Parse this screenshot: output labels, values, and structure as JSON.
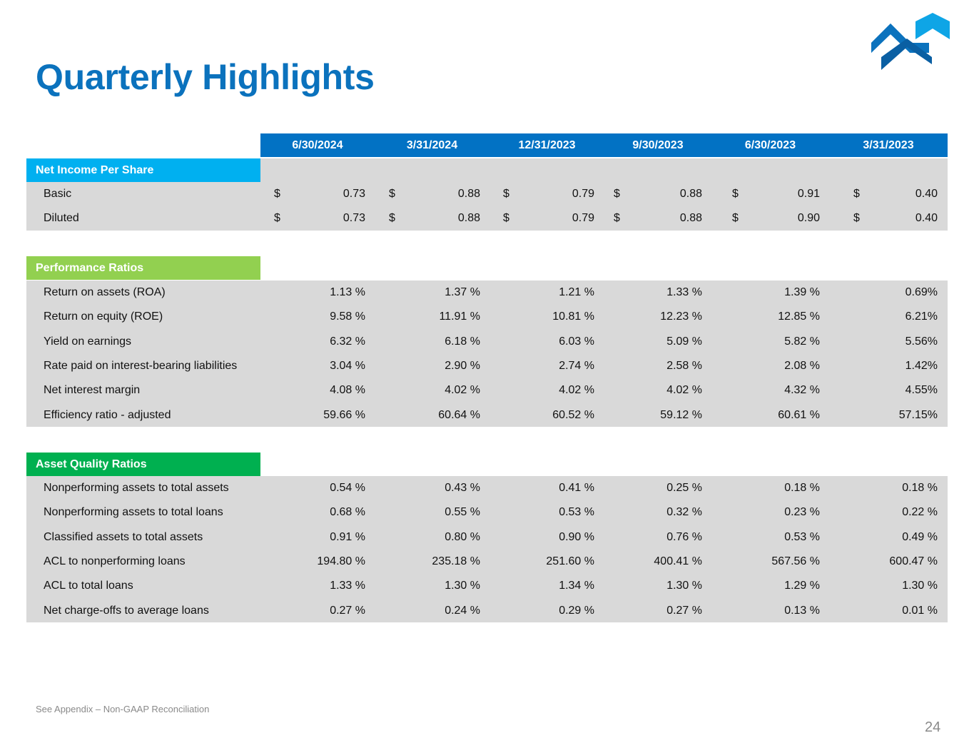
{
  "title": "Quarterly Highlights",
  "colors": {
    "title": "#0b72bd",
    "header": "#0272c4",
    "net_income_header": "#00b0f0",
    "performance_header": "#92d050",
    "asset_quality_header": "#00b050",
    "row_band": "#d9d9d9"
  },
  "periods": [
    "6/30/2024",
    "3/31/2024",
    "12/31/2023",
    "9/30/2023",
    "6/30/2023",
    "3/31/2023"
  ],
  "net_income": {
    "header": "Net Income Per Share",
    "currency": "$",
    "rows": [
      {
        "label": "Basic",
        "values": [
          "0.73",
          "0.88",
          "0.79",
          "0.88",
          "0.91",
          "0.40"
        ]
      },
      {
        "label": "Diluted",
        "values": [
          "0.73",
          "0.88",
          "0.79",
          "0.88",
          "0.90",
          "0.40"
        ]
      }
    ]
  },
  "performance": {
    "header": "Performance Ratios",
    "rows": [
      {
        "label": "Return on assets (ROA)",
        "values": [
          "1.13 %",
          "1.37 %",
          "1.21 %",
          "1.33 %",
          "1.39 %",
          "0.69%"
        ]
      },
      {
        "label": "Return on equity (ROE)",
        "values": [
          "9.58 %",
          "11.91 %",
          "10.81 %",
          "12.23 %",
          "12.85 %",
          "6.21%"
        ]
      },
      {
        "label": "Yield on earnings",
        "values": [
          "6.32 %",
          "6.18 %",
          "6.03 %",
          "5.09 %",
          "5.82 %",
          "5.56%"
        ]
      },
      {
        "label": "Rate paid on interest-bearing liabilities",
        "values": [
          "3.04 %",
          "2.90 %",
          "2.74 %",
          "2.58 %",
          "2.08 %",
          "1.42%"
        ]
      },
      {
        "label": "Net interest margin",
        "values": [
          "4.08 %",
          "4.02 %",
          "4.02 %",
          "4.02 %",
          "4.32 %",
          "4.55%"
        ]
      },
      {
        "label": "Efficiency ratio - adjusted",
        "values": [
          "59.66 %",
          "60.64 %",
          "60.52 %",
          "59.12 %",
          "60.61 %",
          "57.15%"
        ]
      }
    ]
  },
  "asset_quality": {
    "header": "Asset Quality Ratios",
    "rows": [
      {
        "label": "Nonperforming assets to total assets",
        "values": [
          "0.54 %",
          "0.43 %",
          "0.41 %",
          "0.25 %",
          "0.18 %",
          "0.18 %"
        ]
      },
      {
        "label": "Nonperforming assets to total loans",
        "values": [
          "0.68 %",
          "0.55 %",
          "0.53 %",
          "0.32 %",
          "0.23 %",
          "0.22 %"
        ]
      },
      {
        "label": "Classified assets to total assets",
        "values": [
          "0.91 %",
          "0.80 %",
          "0.90 %",
          "0.76 %",
          "0.53 %",
          "0.49 %"
        ]
      },
      {
        "label": "ACL to nonperforming loans",
        "values": [
          "194.80 %",
          "235.18 %",
          "251.60 %",
          "400.41 %",
          "567.56 %",
          "600.47 %"
        ]
      },
      {
        "label": "ACL to total loans",
        "values": [
          "1.33 %",
          "1.30 %",
          "1.34 %",
          "1.30 %",
          "1.29 %",
          "1.30 %"
        ]
      },
      {
        "label": "Net charge-offs to average loans",
        "values": [
          "0.27 %",
          "0.24 %",
          "0.29 %",
          "0.27 %",
          "0.13 %",
          "0.01 %"
        ]
      }
    ]
  },
  "footnote": "See Appendix – Non-GAAP Reconciliation",
  "page_number": "24"
}
